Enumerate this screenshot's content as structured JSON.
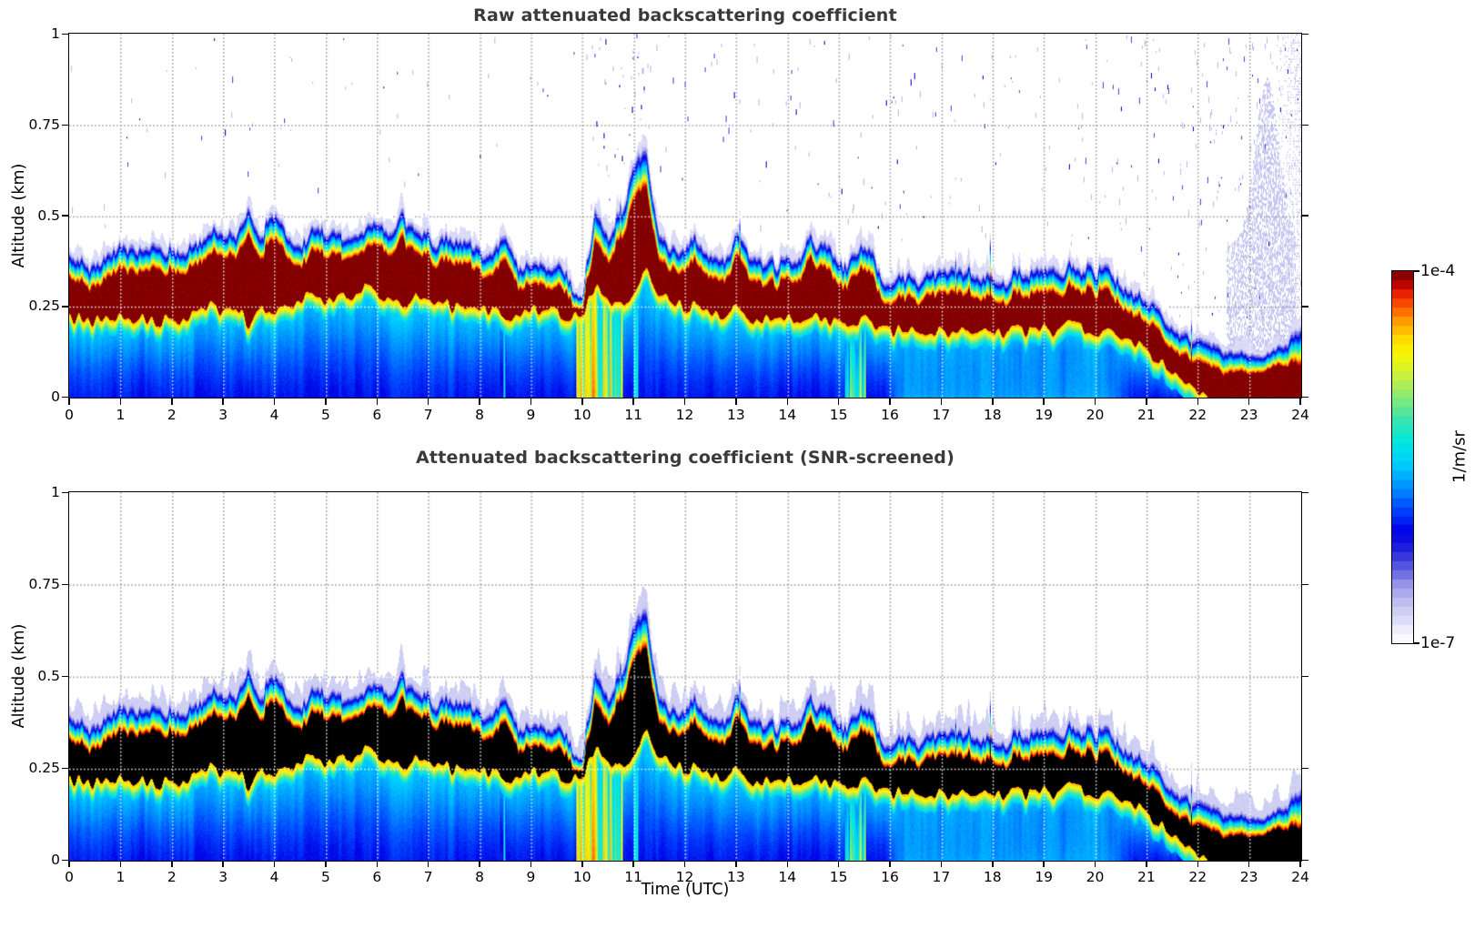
{
  "figure": {
    "background": "#ffffff",
    "title_color": "#3a3a3a",
    "raw_core_color": "#8b0000",
    "screened_core_color": "#000000"
  },
  "chart_data": {
    "panels": [
      {
        "type": "heatmap",
        "title": "Raw attenuated backscattering coefficient",
        "value_scale": "log10",
        "vmin": 1e-07,
        "vmax": 0.0001,
        "units": "1/m/sr",
        "screened": false,
        "noise_speckles": true
      },
      {
        "type": "heatmap",
        "title": "Attenuated backscattering coefficient (SNR-screened)",
        "value_scale": "log10",
        "vmin": 1e-07,
        "vmax": 0.0001,
        "units": "1/m/sr",
        "screened": true,
        "noise_speckles": false
      }
    ],
    "x": {
      "label": "Time (UTC)",
      "lim": [
        0,
        24
      ],
      "ticks": [
        0,
        1,
        2,
        3,
        4,
        5,
        6,
        7,
        8,
        9,
        10,
        11,
        12,
        13,
        14,
        15,
        16,
        17,
        18,
        19,
        20,
        21,
        22,
        23,
        24
      ],
      "tick_labels": [
        "0",
        "1",
        "2",
        "3",
        "4",
        "5",
        "6",
        "7",
        "8",
        "9",
        "10",
        "11",
        "12",
        "13",
        "14",
        "15",
        "16",
        "17",
        "18",
        "19",
        "20",
        "21",
        "22",
        "23",
        "24"
      ]
    },
    "y": {
      "label": "Altitude (km)",
      "lim": [
        0,
        1
      ],
      "ticks": [
        0,
        0.25,
        0.5,
        0.75,
        1
      ],
      "tick_labels": [
        "0",
        "0.25",
        "0.5",
        "0.75",
        "1"
      ],
      "grid": "dotted"
    },
    "colorbar": {
      "label": "1/m/sr",
      "tick_top": "1e-4",
      "tick_bottom": "1e-7",
      "scale": "log",
      "bands": 41,
      "stops": [
        [
          0.0,
          "#ffffff"
        ],
        [
          0.05,
          "#e4e4fa"
        ],
        [
          0.1,
          "#c6c6f2"
        ],
        [
          0.15,
          "#9c9cea"
        ],
        [
          0.2,
          "#5e5ede"
        ],
        [
          0.25,
          "#2020dc"
        ],
        [
          0.3,
          "#0000e6"
        ],
        [
          0.36,
          "#0046ff"
        ],
        [
          0.42,
          "#0090ff"
        ],
        [
          0.48,
          "#00ccff"
        ],
        [
          0.54,
          "#00e8e0"
        ],
        [
          0.6,
          "#3ce4ac"
        ],
        [
          0.66,
          "#86ea78"
        ],
        [
          0.72,
          "#ccf03c"
        ],
        [
          0.78,
          "#f8f800"
        ],
        [
          0.82,
          "#ffd800"
        ],
        [
          0.86,
          "#ffa600"
        ],
        [
          0.9,
          "#ff5e00"
        ],
        [
          0.94,
          "#e61e00"
        ],
        [
          0.97,
          "#b40000"
        ],
        [
          1.0,
          "#700000"
        ]
      ]
    },
    "series": {
      "sampling_h": {
        "start": 0,
        "step": 0.25,
        "count": 97
      },
      "layer_top_km": [
        0.4,
        0.39,
        0.38,
        0.4,
        0.41,
        0.4,
        0.42,
        0.41,
        0.43,
        0.42,
        0.46,
        0.46,
        0.45,
        0.47,
        0.52,
        0.46,
        0.52,
        0.46,
        0.45,
        0.47,
        0.44,
        0.46,
        0.48,
        0.5,
        0.49,
        0.46,
        0.52,
        0.47,
        0.46,
        0.44,
        0.43,
        0.44,
        0.42,
        0.4,
        0.44,
        0.38,
        0.4,
        0.4,
        0.38,
        0.34,
        0.3,
        0.55,
        0.46,
        0.5,
        0.62,
        0.68,
        0.46,
        0.43,
        0.42,
        0.43,
        0.4,
        0.39,
        0.46,
        0.38,
        0.37,
        0.39,
        0.41,
        0.4,
        0.46,
        0.4,
        0.37,
        0.4,
        0.42,
        0.36,
        0.34,
        0.35,
        0.34,
        0.35,
        0.35,
        0.34,
        0.35,
        0.34,
        0.35,
        0.34,
        0.35,
        0.34,
        0.35,
        0.34,
        0.38,
        0.36,
        0.34,
        0.35,
        0.33,
        0.3,
        0.28,
        0.25,
        0.21,
        0.19,
        0.17,
        0.15,
        0.14,
        0.13,
        0.13,
        0.12,
        0.13,
        0.16,
        0.21
      ],
      "aerosol_core_top_km": [
        0.33,
        0.32,
        0.31,
        0.33,
        0.34,
        0.33,
        0.35,
        0.34,
        0.36,
        0.35,
        0.39,
        0.39,
        0.38,
        0.4,
        0.44,
        0.39,
        0.44,
        0.39,
        0.38,
        0.4,
        0.37,
        0.39,
        0.41,
        0.43,
        0.42,
        0.39,
        0.44,
        0.4,
        0.39,
        0.37,
        0.36,
        0.37,
        0.35,
        0.33,
        0.37,
        0.31,
        0.33,
        0.33,
        0.31,
        0.28,
        0.26,
        0.45,
        0.38,
        0.42,
        0.52,
        0.57,
        0.38,
        0.36,
        0.35,
        0.36,
        0.33,
        0.32,
        0.39,
        0.31,
        0.3,
        0.32,
        0.34,
        0.33,
        0.39,
        0.33,
        0.3,
        0.33,
        0.35,
        0.29,
        0.27,
        0.28,
        0.27,
        0.28,
        0.28,
        0.27,
        0.28,
        0.27,
        0.28,
        0.27,
        0.28,
        0.27,
        0.28,
        0.27,
        0.31,
        0.29,
        0.27,
        0.28,
        0.26,
        0.23,
        0.21,
        0.18,
        0.14,
        0.12,
        0.1,
        0.08,
        0.07,
        0.07,
        0.07,
        0.07,
        0.08,
        0.09,
        0.1
      ],
      "aerosol_core_bottom_km": [
        0.22,
        0.22,
        0.21,
        0.22,
        0.22,
        0.21,
        0.22,
        0.21,
        0.22,
        0.21,
        0.24,
        0.25,
        0.24,
        0.25,
        0.2,
        0.26,
        0.22,
        0.26,
        0.27,
        0.28,
        0.26,
        0.27,
        0.28,
        0.3,
        0.29,
        0.27,
        0.25,
        0.28,
        0.27,
        0.26,
        0.25,
        0.26,
        0.25,
        0.24,
        0.22,
        0.23,
        0.24,
        0.24,
        0.23,
        0.22,
        0.24,
        0.3,
        0.28,
        0.25,
        0.3,
        0.35,
        0.28,
        0.26,
        0.25,
        0.26,
        0.24,
        0.23,
        0.25,
        0.22,
        0.21,
        0.22,
        0.23,
        0.22,
        0.24,
        0.22,
        0.2,
        0.21,
        0.22,
        0.19,
        0.18,
        0.19,
        0.18,
        0.18,
        0.19,
        0.18,
        0.19,
        0.18,
        0.19,
        0.18,
        0.19,
        0.18,
        0.19,
        0.18,
        0.21,
        0.19,
        0.18,
        0.19,
        0.17,
        0.15,
        0.13,
        0.1,
        0.07,
        0.04,
        0.02,
        0.0,
        0.0,
        0.0,
        0.0,
        0.0,
        0.0,
        0.0,
        0.0
      ]
    },
    "features": {
      "morning_plume": {
        "t_range_h": [
          10.8,
          11.45
        ],
        "top_km": 0.68
      },
      "pre_plume_dip": {
        "t_range_h": [
          9.6,
          10.2
        ],
        "min_top_km": 0.3
      },
      "surface_mixing_columns_h": [
        [
          9.9,
          10.78
        ],
        [
          15.15,
          15.5
        ]
      ],
      "cyan_streaks_h": [
        8.47,
        11.03
      ],
      "boundary_layer_descent": {
        "t_range_h": [
          20.4,
          22.3
        ],
        "from_km": 0.33,
        "to_km": 0.13
      },
      "noise_plume": {
        "t_range_h": [
          22.6,
          23.85
        ],
        "top_km": 0.9
      },
      "shallow_surface_layer_h": [
        16.0,
        20.6
      ]
    }
  }
}
